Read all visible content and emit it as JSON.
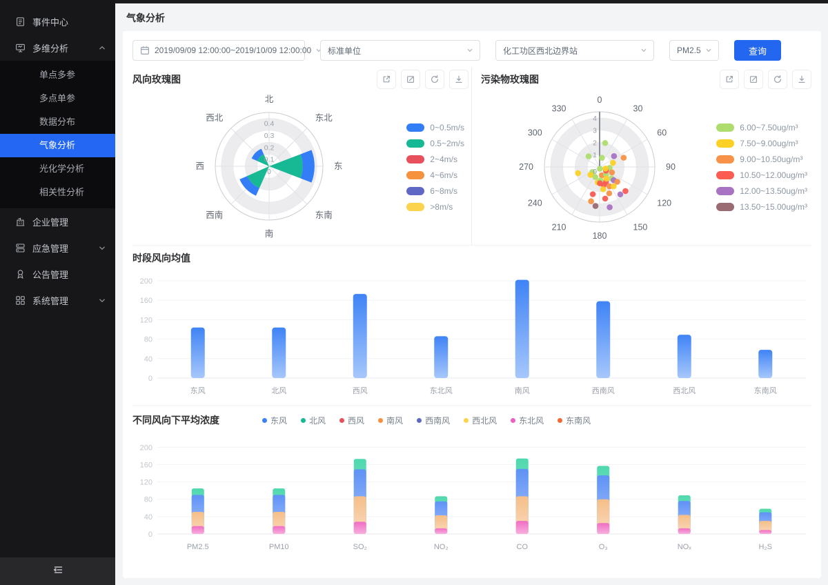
{
  "header": {
    "title": "气象分析"
  },
  "sidebar": {
    "items": [
      {
        "label": "事件中心",
        "icon": "event-center-icon"
      },
      {
        "label": "多维分析",
        "icon": "multi-analysis-icon",
        "chevron": "up",
        "children": [
          {
            "label": "单点多参"
          },
          {
            "label": "多点单参"
          },
          {
            "label": "数据分布"
          },
          {
            "label": "气象分析",
            "active": true
          },
          {
            "label": "光化学分析"
          },
          {
            "label": "相关性分析"
          }
        ]
      },
      {
        "label": "企业管理",
        "icon": "enterprise-icon"
      },
      {
        "label": "应急管理",
        "icon": "emergency-icon",
        "chevron": "down"
      },
      {
        "label": "公告管理",
        "icon": "notice-icon"
      },
      {
        "label": "系统管理",
        "icon": "system-icon",
        "chevron": "down"
      }
    ],
    "collapse_icon": "menu-fold-icon"
  },
  "filters": {
    "date_range": "2019/09/09 12:00:00~2019/10/09 12:00:00",
    "unit": "标准单位",
    "station": "化工功区西北边界站",
    "pollutant": "PM2.5",
    "query_label": "查询"
  },
  "toolbar_icons": [
    "export",
    "edit",
    "refresh",
    "download"
  ],
  "accent_color": "#2367F1",
  "chart_data": [
    {
      "type": "polar-bar",
      "title": "风向玫瑰图",
      "direction_labels": [
        "北",
        "东北",
        "东",
        "东南",
        "南",
        "西南",
        "西",
        "西北"
      ],
      "radial_ticks": [
        0,
        0.1,
        0.2,
        0.3,
        0.4
      ],
      "radial_max": 0.45,
      "legend": [
        {
          "label": "0~0.5m/s",
          "color": "#337DF7"
        },
        {
          "label": "0.5~2m/s",
          "color": "#17B894"
        },
        {
          "label": "2~4m/s",
          "color": "#E8505B"
        },
        {
          "label": "4~6m/s",
          "color": "#F6913E"
        },
        {
          "label": "6~8m/s",
          "color": "#5F68C5"
        },
        {
          "label": ">8m/s",
          "color": "#FBD34D"
        }
      ],
      "wedges": [
        {
          "direction": "东",
          "angle": 90,
          "segments": [
            {
              "speed": "0.5~2m/s",
              "color": "#17B894",
              "from": 0,
              "to": 0.28
            },
            {
              "speed": "0~0.5m/s",
              "color": "#337DF7",
              "from": 0.28,
              "to": 0.38
            }
          ]
        },
        {
          "direction": "西南",
          "angle": 225,
          "segments": [
            {
              "speed": "0.5~2m/s",
              "color": "#17B894",
              "from": 0,
              "to": 0.2
            },
            {
              "speed": "0~0.5m/s",
              "color": "#337DF7",
              "from": 0.2,
              "to": 0.27
            }
          ]
        },
        {
          "direction": "西北",
          "angle": 315,
          "segments": [
            {
              "speed": "0.5~2m/s",
              "color": "#17B894",
              "from": 0,
              "to": 0.11
            },
            {
              "speed": "0~0.5m/s",
              "color": "#337DF7",
              "from": 0.11,
              "to": 0.16
            }
          ]
        }
      ]
    },
    {
      "type": "polar-scatter",
      "title": "污染物玫瑰图",
      "angle_ticks": [
        0,
        30,
        60,
        90,
        120,
        150,
        180,
        210,
        240,
        270,
        300,
        330
      ],
      "radial_ticks": [
        0,
        1,
        2,
        3,
        4
      ],
      "radial_max": 4.5,
      "legend": [
        {
          "label": "6.00~7.50ug/m³",
          "color": "#AEDD6E"
        },
        {
          "label": "7.50~9.00ug/m³",
          "color": "#FBD128"
        },
        {
          "label": "9.00~10.50ug/m³",
          "color": "#F79248"
        },
        {
          "label": "10.50~12.00ug/m³",
          "color": "#FB5C51"
        },
        {
          "label": "12.00~13.50ug/m³",
          "color": "#A873C2"
        },
        {
          "label": "13.50~15.00ug/m³",
          "color": "#9A6B72"
        }
      ],
      "points": [
        [
          13,
          2.0,
          0
        ],
        [
          314,
          1.25,
          0
        ],
        [
          14,
          0.77,
          0
        ],
        [
          53,
          1.47,
          4
        ],
        [
          69,
          2.1,
          2
        ],
        [
          73,
          1.14,
          1
        ],
        [
          170,
          0.15,
          0
        ],
        [
          254,
          1.83,
          1
        ],
        [
          95,
          0.82,
          0
        ],
        [
          114,
          1.1,
          2
        ],
        [
          235,
          0.73,
          0
        ],
        [
          229,
          0.98,
          1
        ],
        [
          203,
          0.89,
          0
        ],
        [
          165,
          0.7,
          2
        ],
        [
          139,
          0.8,
          0
        ],
        [
          134,
          1.35,
          0
        ],
        [
          133,
          1.57,
          4
        ],
        [
          130,
          1.88,
          2
        ],
        [
          157,
          1.33,
          3
        ],
        [
          167,
          1.51,
          3
        ],
        [
          153,
          1.78,
          2
        ],
        [
          144,
          1.95,
          1
        ],
        [
          133,
          2.88,
          3
        ],
        [
          171,
          1.84,
          1
        ],
        [
          194,
          2.29,
          3
        ],
        [
          143,
          2.8,
          4
        ],
        [
          160,
          2.29,
          2
        ],
        [
          170,
          2.62,
          3
        ],
        [
          194,
          2.88,
          2
        ],
        [
          186,
          3.2,
          5
        ],
        [
          166,
          3.39,
          4
        ],
        [
          187,
          1.27,
          1
        ],
        [
          177,
          1.1,
          0
        ],
        [
          179,
          1.33,
          3
        ],
        [
          150,
          1.1,
          1
        ],
        [
          120,
          0.6,
          3
        ],
        [
          105,
          0.5,
          1
        ]
      ]
    },
    {
      "type": "bar",
      "title": "时段风向均值",
      "categories": [
        "东风",
        "北风",
        "西风",
        "东北风",
        "南风",
        "西南风",
        "西北风",
        "东南风"
      ],
      "values": [
        104,
        104,
        173,
        86,
        202,
        158,
        89,
        58
      ],
      "yticks": [
        0,
        40,
        80,
        120,
        160,
        200
      ],
      "ylim": [
        0,
        200
      ],
      "bar_gradient": [
        "#3F83F6",
        "#A6C7FB"
      ]
    },
    {
      "type": "stacked-bar",
      "title": "不同风向下平均浓度",
      "legend": [
        {
          "label": "东风",
          "color": "#3B82F6"
        },
        {
          "label": "北风",
          "color": "#17B894"
        },
        {
          "label": "西风",
          "color": "#E8505B"
        },
        {
          "label": "南风",
          "color": "#F6913E"
        },
        {
          "label": "西南风",
          "color": "#5F68C5"
        },
        {
          "label": "西北风",
          "color": "#FBD34D"
        },
        {
          "label": "东北风",
          "color": "#EC5FC4"
        },
        {
          "label": "东南风",
          "color": "#F26A35"
        }
      ],
      "categories": [
        "PM2.5",
        "PM10",
        "SO₂",
        "NO₂",
        "CO",
        "O₃",
        "NOₓ",
        "H₂S"
      ],
      "stack_colors": [
        "#F06DC3",
        "#F5BE88",
        "#5F92F6",
        "#4FD8AE"
      ],
      "stacks": [
        [
          18,
          33,
          39,
          15
        ],
        [
          18,
          33,
          39,
          15
        ],
        [
          28,
          59,
          62,
          24
        ],
        [
          13,
          30,
          32,
          12
        ],
        [
          30,
          57,
          63,
          24
        ],
        [
          25,
          55,
          55,
          22
        ],
        [
          13,
          31,
          32,
          13
        ],
        [
          9,
          21,
          20,
          8
        ]
      ],
      "yticks": [
        0,
        40,
        80,
        120,
        160,
        200
      ],
      "ylim": [
        0,
        200
      ]
    }
  ]
}
